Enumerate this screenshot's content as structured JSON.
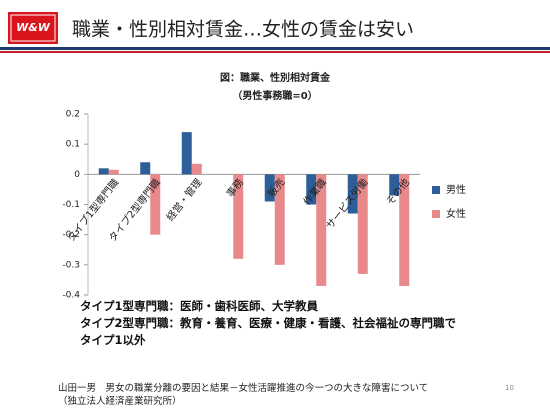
{
  "slide": {
    "logo": "W&W",
    "title": "職業・性別相対賃金…女性の賃金は安い",
    "notes": [
      "タイプ1型専門職：医師・歯科医師、大学教員",
      "タイプ2型専門職：教育・養育、医療・健康・看護、社会福祉の専門職でタイプ1以外"
    ],
    "source": [
      "山田一男　男女の職業分離の要因と結果－女性活躍推進の今一つの大きな障害について",
      "（独立法人経済産業研究所）"
    ],
    "page_number": "10"
  },
  "chart_data": {
    "type": "bar",
    "title": "図：職業、性別相対賃金",
    "subtitle": "（男性事務職=0）",
    "categories": [
      "タイプ1型専門職",
      "タイプ2型専門職",
      "経営・管理",
      "事務",
      "販売",
      "作業職",
      "サービス労働",
      "その他"
    ],
    "series": [
      {
        "name": "男性",
        "color": "#2e5e98",
        "values": [
          0.02,
          0.04,
          0.14,
          0,
          -0.09,
          -0.1,
          -0.13,
          -0.07
        ]
      },
      {
        "name": "女性",
        "color": "#e8898b",
        "values": [
          0.015,
          -0.2,
          0.035,
          -0.28,
          -0.3,
          -0.37,
          -0.33,
          -0.37
        ]
      }
    ],
    "ylim": [
      -0.4,
      0.2
    ],
    "yticks": [
      0.2,
      0.1,
      0,
      -0.1,
      -0.2,
      -0.3,
      -0.4
    ],
    "grid": false,
    "legend": "right"
  }
}
